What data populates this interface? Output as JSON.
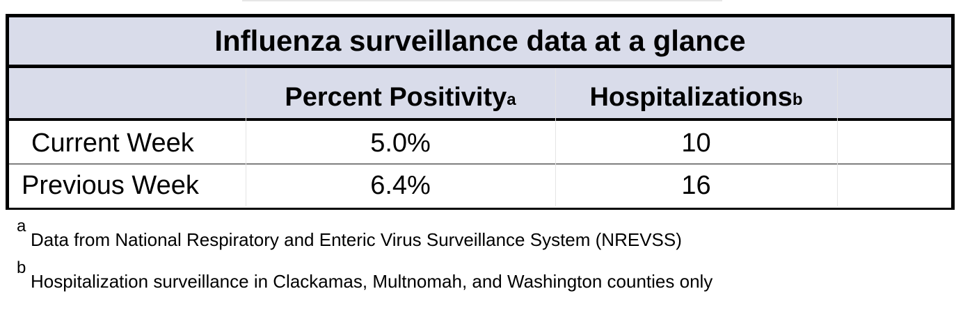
{
  "chart_data": {
    "type": "table",
    "title": "Influenza surveillance data at a glance",
    "columns": [
      {
        "label": "",
        "superscript": ""
      },
      {
        "label": "Percent Positivity",
        "superscript": "a"
      },
      {
        "label": "Hospitalizations",
        "superscript": "b"
      }
    ],
    "rows": [
      {
        "label": "Current Week",
        "percent_positivity": "5.0%",
        "hospitalizations": "10"
      },
      {
        "label": "Previous Week",
        "percent_positivity": "6.4%",
        "hospitalizations": "16"
      }
    ],
    "footnotes": [
      {
        "mark": "a",
        "text": "Data from National Respiratory and Enteric Virus Surveillance System (NREVSS)"
      },
      {
        "mark": "b",
        "text": "Hospitalization surveillance in Clackamas, Multnomah, and Washington counties only"
      }
    ],
    "colors": {
      "header_fill": "#d9dcea",
      "border": "#000000",
      "row_divider": "#7f7f7f"
    }
  }
}
